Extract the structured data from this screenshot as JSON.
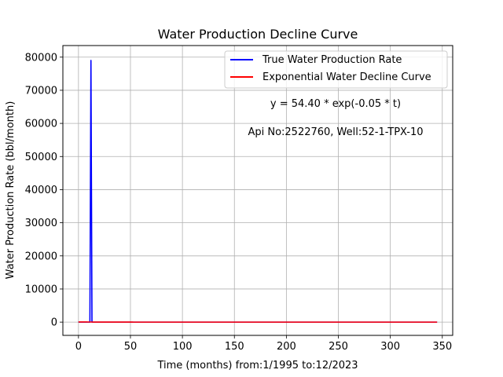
{
  "chart_data": {
    "type": "line",
    "title": "Water Production Decline Curve",
    "xlabel": "Time (months) from:1/1995 to:12/2023",
    "ylabel": "Water Production Rate (bbl/month)",
    "xlim": [
      -15,
      360
    ],
    "ylim": [
      -4000,
      83500
    ],
    "xticks": [
      0,
      50,
      100,
      150,
      200,
      250,
      300,
      350
    ],
    "yticks": [
      0,
      10000,
      20000,
      30000,
      40000,
      50000,
      60000,
      70000,
      80000
    ],
    "grid": true,
    "legend_position": "top-right",
    "series": [
      {
        "name": "True Water Production Rate",
        "color": "#0000ff",
        "x": [
          0,
          11,
          12,
          13,
          14,
          345
        ],
        "y": [
          0,
          0,
          79000,
          0,
          0,
          0
        ]
      },
      {
        "name": "Exponential Water Decline Curve",
        "color": "#ff0000",
        "model": {
          "a": 54.4,
          "b": -0.05,
          "x_start": 0,
          "x_end": 345
        }
      }
    ],
    "annotations": [
      {
        "text": "y = 54.40 * exp(-0.05 * t)"
      },
      {
        "text": "Api No:2522760, Well:52-1-TPX-10"
      }
    ]
  }
}
